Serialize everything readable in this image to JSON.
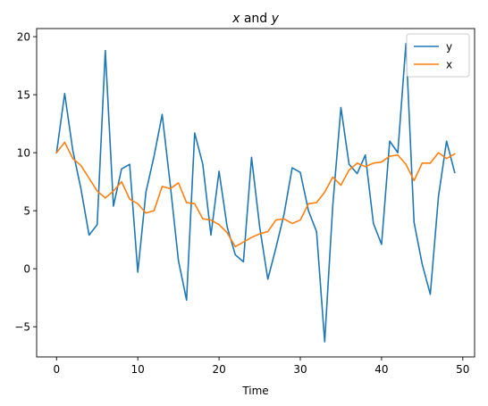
{
  "chart_data": {
    "type": "line",
    "title_parts": [
      {
        "text": "x",
        "italic": true
      },
      {
        "text": " and ",
        "italic": false
      },
      {
        "text": "y",
        "italic": true
      }
    ],
    "xlabel": "Time",
    "ylabel": "",
    "xlim": [
      -2.45,
      51.45
    ],
    "ylim": [
      -7.6,
      20.7
    ],
    "xticks": [
      0,
      10,
      20,
      30,
      40,
      50
    ],
    "yticks": [
      -5,
      0,
      5,
      10,
      15,
      20
    ],
    "grid": false,
    "legend_position": "top-right",
    "x": [
      0,
      1,
      2,
      3,
      4,
      5,
      6,
      7,
      8,
      9,
      10,
      11,
      12,
      13,
      14,
      15,
      16,
      17,
      18,
      19,
      20,
      21,
      22,
      23,
      24,
      25,
      26,
      27,
      28,
      29,
      30,
      31,
      32,
      33,
      34,
      35,
      36,
      37,
      38,
      39,
      40,
      41,
      42,
      43,
      44,
      45,
      46,
      47,
      48,
      49
    ],
    "series": [
      {
        "name": "y",
        "color": "#1f77b4",
        "values": [
          10.0,
          15.1,
          10.2,
          6.9,
          2.9,
          3.8,
          18.8,
          5.4,
          8.6,
          9.0,
          -0.3,
          6.6,
          9.7,
          13.3,
          7.2,
          0.7,
          -2.7,
          11.7,
          9.0,
          2.9,
          8.4,
          3.6,
          1.2,
          0.6,
          9.6,
          3.6,
          -0.9,
          1.8,
          4.7,
          8.7,
          8.3,
          5.0,
          3.2,
          -6.3,
          5.5,
          13.9,
          9.0,
          8.2,
          9.8,
          3.9,
          2.1,
          11.0,
          10.0,
          19.4,
          4.0,
          0.4,
          -2.2,
          6.2,
          11.0,
          8.3
        ]
      },
      {
        "name": "x",
        "color": "#ff7f0e",
        "values": [
          10.0,
          10.9,
          9.5,
          8.9,
          7.8,
          6.7,
          6.1,
          6.7,
          7.5,
          6.0,
          5.6,
          4.8,
          5.0,
          7.1,
          6.9,
          7.4,
          5.7,
          5.6,
          4.3,
          4.2,
          3.8,
          3.1,
          1.9,
          2.3,
          2.7,
          3.0,
          3.2,
          4.2,
          4.3,
          3.9,
          4.2,
          5.6,
          5.7,
          6.6,
          7.9,
          7.2,
          8.5,
          9.1,
          8.8,
          9.1,
          9.2,
          9.7,
          9.8,
          9.0,
          7.6,
          9.1,
          9.1,
          10.0,
          9.5,
          9.9
        ]
      }
    ]
  }
}
